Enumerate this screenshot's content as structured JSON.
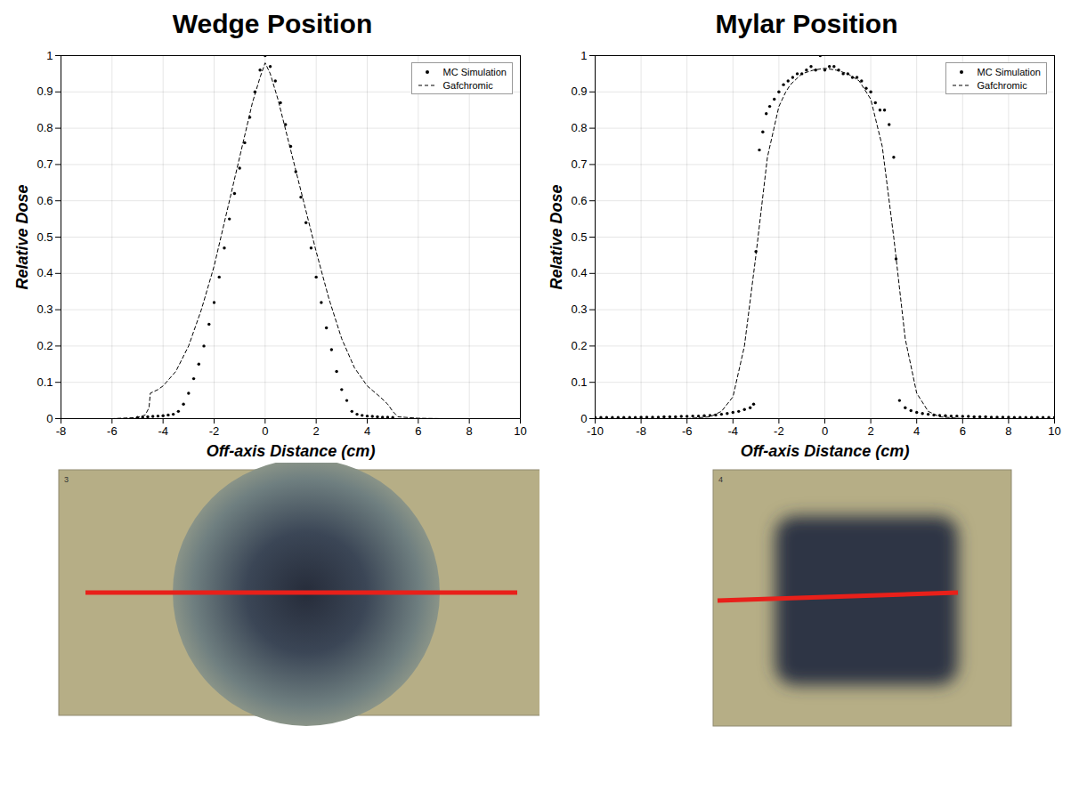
{
  "chart_data": [
    {
      "type": "scatter",
      "title": "Wedge Position",
      "x_label": "Off-axis Distance (cm)",
      "y_label": "Relative Dose",
      "xlim": [
        -8,
        10
      ],
      "xticks": [
        -8,
        -6,
        -4,
        -2,
        0,
        2,
        4,
        6,
        8,
        10
      ],
      "ylim": [
        0,
        1
      ],
      "yticks": [
        0,
        0.1,
        0.2,
        0.3,
        0.4,
        0.5,
        0.6,
        0.7,
        0.8,
        0.9,
        1
      ],
      "grid": true,
      "legend": "top-right",
      "annotations": [
        {
          "text": "3"
        }
      ],
      "series": [
        {
          "name": "MC Simulation",
          "type": "scatter",
          "marker": "dot",
          "color": "#000000",
          "x": [
            -5,
            -4.8,
            -4.6,
            -4.4,
            -4.2,
            -4,
            -3.8,
            -3.6,
            -3.4,
            -3.2,
            -3,
            -2.8,
            -2.6,
            -2.4,
            -2.2,
            -2,
            -1.8,
            -1.6,
            -1.4,
            -1.2,
            -1,
            -0.8,
            -0.6,
            -0.4,
            -0.2,
            0,
            0.2,
            0.4,
            0.6,
            0.8,
            1,
            1.2,
            1.4,
            1.6,
            1.8,
            2,
            2.2,
            2.4,
            2.6,
            2.8,
            3,
            3.2,
            3.4,
            3.6,
            3.8,
            4,
            4.2,
            4.4,
            4.6,
            4.8,
            5
          ],
          "values": [
            0.003,
            0.004,
            0.005,
            0.006,
            0.007,
            0.008,
            0.01,
            0.012,
            0.02,
            0.04,
            0.07,
            0.11,
            0.15,
            0.2,
            0.26,
            0.32,
            0.39,
            0.47,
            0.55,
            0.62,
            0.69,
            0.76,
            0.83,
            0.9,
            0.96,
            1.0,
            0.97,
            0.93,
            0.87,
            0.81,
            0.75,
            0.68,
            0.61,
            0.54,
            0.47,
            0.39,
            0.32,
            0.25,
            0.19,
            0.13,
            0.08,
            0.05,
            0.02,
            0.012,
            0.009,
            0.007,
            0.006,
            0.005,
            0.004,
            0.004,
            0.003
          ]
        },
        {
          "name": "Gafchromic",
          "type": "line",
          "line_style": "dashed",
          "color": "#000000",
          "x": [
            -7.5,
            -6,
            -5,
            -4.7,
            -4.55,
            -4.5,
            -4.2,
            -4,
            -3.5,
            -3,
            -2.5,
            -2,
            -1.5,
            -1,
            -0.5,
            -0.2,
            0,
            0.2,
            0.5,
            1,
            1.5,
            2,
            2.5,
            3,
            3.5,
            4,
            4.5,
            4.8,
            5,
            5.2,
            6,
            7,
            8,
            9
          ],
          "values": [
            0,
            0,
            0.003,
            0.01,
            0.03,
            0.07,
            0.08,
            0.09,
            0.13,
            0.2,
            0.3,
            0.42,
            0.57,
            0.72,
            0.87,
            0.94,
            0.98,
            0.95,
            0.88,
            0.74,
            0.6,
            0.46,
            0.33,
            0.22,
            0.14,
            0.09,
            0.06,
            0.04,
            0.02,
            0.005,
            0.001,
            0,
            0,
            0
          ]
        }
      ]
    },
    {
      "type": "scatter",
      "title": "Mylar Position",
      "x_label": "Off-axis Distance (cm)",
      "y_label": "Relative Dose",
      "xlim": [
        -10,
        10
      ],
      "xticks": [
        -10,
        -8,
        -6,
        -4,
        -2,
        0,
        2,
        4,
        6,
        8,
        10
      ],
      "ylim": [
        0,
        1
      ],
      "yticks": [
        0,
        0.1,
        0.2,
        0.3,
        0.4,
        0.5,
        0.6,
        0.7,
        0.8,
        0.9,
        1
      ],
      "grid": true,
      "legend": "top-right",
      "annotations": [
        {
          "text": "4"
        }
      ],
      "series": [
        {
          "name": "MC Simulation",
          "type": "scatter",
          "marker": "dot",
          "color": "#000000",
          "x": [
            -10,
            -9.75,
            -9.5,
            -9.25,
            -9,
            -8.75,
            -8.5,
            -8.25,
            -8,
            -7.75,
            -7.5,
            -7.25,
            -7,
            -6.75,
            -6.5,
            -6.25,
            -6,
            -5.75,
            -5.5,
            -5.25,
            -5,
            -4.75,
            -4.5,
            -4.25,
            -4,
            -3.75,
            -3.5,
            -3.25,
            -3.1,
            -3,
            -2.85,
            -2.7,
            -2.55,
            -2.4,
            -2.2,
            -2,
            -1.8,
            -1.6,
            -1.4,
            -1.2,
            -1,
            -0.8,
            -0.6,
            -0.4,
            -0.2,
            0,
            0.2,
            0.4,
            0.6,
            0.8,
            1,
            1.2,
            1.4,
            1.6,
            1.8,
            2,
            2.2,
            2.4,
            2.6,
            2.8,
            3,
            3.1,
            3.25,
            3.5,
            3.75,
            4,
            4.25,
            4.5,
            4.75,
            5,
            5.25,
            5.5,
            5.75,
            6,
            6.25,
            6.5,
            6.75,
            7,
            7.25,
            7.5,
            7.75,
            8,
            8.25,
            8.5,
            8.75,
            9,
            9.25,
            9.5,
            9.75,
            10
          ],
          "values": [
            0.003,
            0.003,
            0.003,
            0.003,
            0.003,
            0.003,
            0.003,
            0.003,
            0.004,
            0.004,
            0.004,
            0.004,
            0.005,
            0.005,
            0.005,
            0.006,
            0.006,
            0.007,
            0.007,
            0.008,
            0.009,
            0.01,
            0.012,
            0.014,
            0.017,
            0.02,
            0.025,
            0.03,
            0.04,
            0.46,
            0.74,
            0.79,
            0.84,
            0.86,
            0.88,
            0.9,
            0.92,
            0.93,
            0.94,
            0.95,
            0.95,
            0.96,
            0.97,
            0.96,
            1.0,
            0.96,
            0.97,
            0.97,
            0.96,
            0.95,
            0.95,
            0.94,
            0.94,
            0.93,
            0.91,
            0.9,
            0.87,
            0.85,
            0.85,
            0.81,
            0.72,
            0.44,
            0.05,
            0.03,
            0.022,
            0.017,
            0.014,
            0.012,
            0.01,
            0.009,
            0.008,
            0.007,
            0.007,
            0.006,
            0.006,
            0.005,
            0.005,
            0.005,
            0.004,
            0.004,
            0.004,
            0.004,
            0.003,
            0.003,
            0.003,
            0.003,
            0.003,
            0.003,
            0.003,
            0.003
          ]
        },
        {
          "name": "Gafchromic",
          "type": "line",
          "line_style": "dashed",
          "color": "#000000",
          "x": [
            -6,
            -5,
            -4.5,
            -4,
            -3.5,
            -3,
            -2.5,
            -2,
            -1.7,
            -1.5,
            -1,
            -0.5,
            0,
            0.5,
            1,
            1.5,
            2,
            2.5,
            3,
            3.5,
            4,
            4.5,
            5,
            6
          ],
          "values": [
            0,
            0.005,
            0.02,
            0.06,
            0.2,
            0.45,
            0.72,
            0.86,
            0.9,
            0.92,
            0.95,
            0.96,
            0.965,
            0.96,
            0.95,
            0.93,
            0.88,
            0.75,
            0.5,
            0.22,
            0.07,
            0.02,
            0.005,
            0
          ]
        }
      ]
    }
  ]
}
